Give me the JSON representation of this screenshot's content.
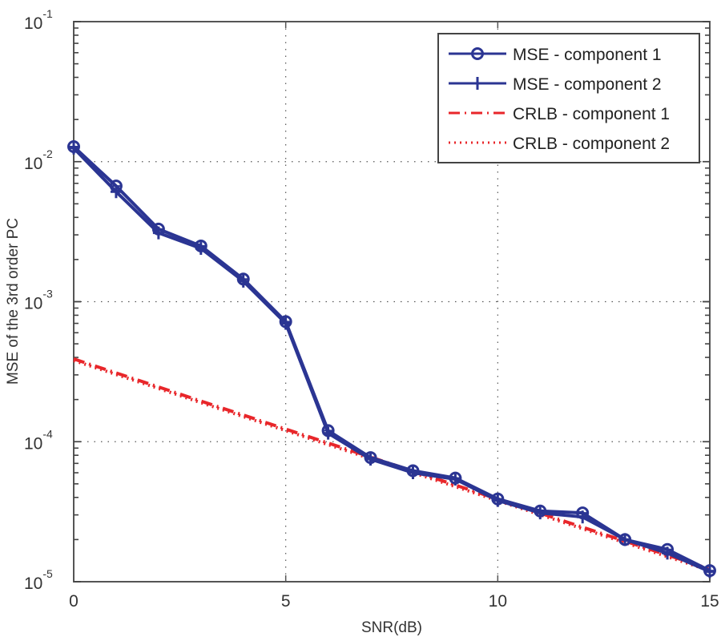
{
  "chart_data": {
    "type": "line",
    "title": "",
    "xlabel": "SNR(dB)",
    "ylabel": "MSE of the 3rd order PC",
    "xlim": [
      0,
      15
    ],
    "ylim": [
      1e-05,
      0.1
    ],
    "yscale": "log",
    "grid": true,
    "x_ticks": [
      0,
      5,
      10,
      15
    ],
    "x_tick_labels": [
      "0",
      "5",
      "10",
      "15"
    ],
    "y_ticks": [
      1e-05,
      0.0001,
      0.001,
      0.01,
      0.1
    ],
    "y_tick_labels": [
      {
        "base": "10",
        "exp": "-5"
      },
      {
        "base": "10",
        "exp": "-4"
      },
      {
        "base": "10",
        "exp": "-3"
      },
      {
        "base": "10",
        "exp": "-2"
      },
      {
        "base": "10",
        "exp": "-1"
      }
    ],
    "legend_position": "top-right",
    "x": [
      0,
      1,
      2,
      3,
      4,
      5,
      6,
      7,
      8,
      9,
      10,
      11,
      12,
      13,
      14,
      15
    ],
    "series": [
      {
        "name": "MSE - component 1",
        "color": "#2b3593",
        "style": "solid",
        "marker": "circle",
        "values": [
          0.0128,
          0.0067,
          0.0033,
          0.0025,
          0.00145,
          0.00072,
          0.00012,
          7.7e-05,
          6.2e-05,
          5.5e-05,
          3.9e-05,
          3.2e-05,
          3.1e-05,
          2e-05,
          1.7e-05,
          1.2e-05
        ]
      },
      {
        "name": "MSE - component 2",
        "color": "#2b3593",
        "style": "solid",
        "marker": "plus",
        "values": [
          0.0125,
          0.0061,
          0.0031,
          0.0024,
          0.0014,
          0.0007,
          0.000115,
          7.5e-05,
          6e-05,
          5.4e-05,
          3.8e-05,
          3.1e-05,
          2.9e-05,
          2e-05,
          1.6e-05,
          1.18e-05
        ]
      },
      {
        "name": "CRLB - component 1",
        "color": "#e8262a",
        "style": "dashdot",
        "marker": "none",
        "values": [
          0.00039,
          0.00031,
          0.000246,
          0.000195,
          0.000155,
          0.000123,
          9.78e-05,
          7.77e-05,
          6.17e-05,
          4.9e-05,
          3.89e-05,
          3.09e-05,
          2.45e-05,
          1.95e-05,
          1.55e-05,
          1.23e-05
        ]
      },
      {
        "name": "CRLB - component 2",
        "color": "#e8262a",
        "style": "dotted",
        "marker": "none",
        "values": [
          0.00038,
          0.000302,
          0.00024,
          0.00019,
          0.000151,
          0.00012,
          9.53e-05,
          7.57e-05,
          6.01e-05,
          4.78e-05,
          3.79e-05,
          3.01e-05,
          2.39e-05,
          1.9e-05,
          1.51e-05,
          1.2e-05
        ]
      }
    ]
  }
}
